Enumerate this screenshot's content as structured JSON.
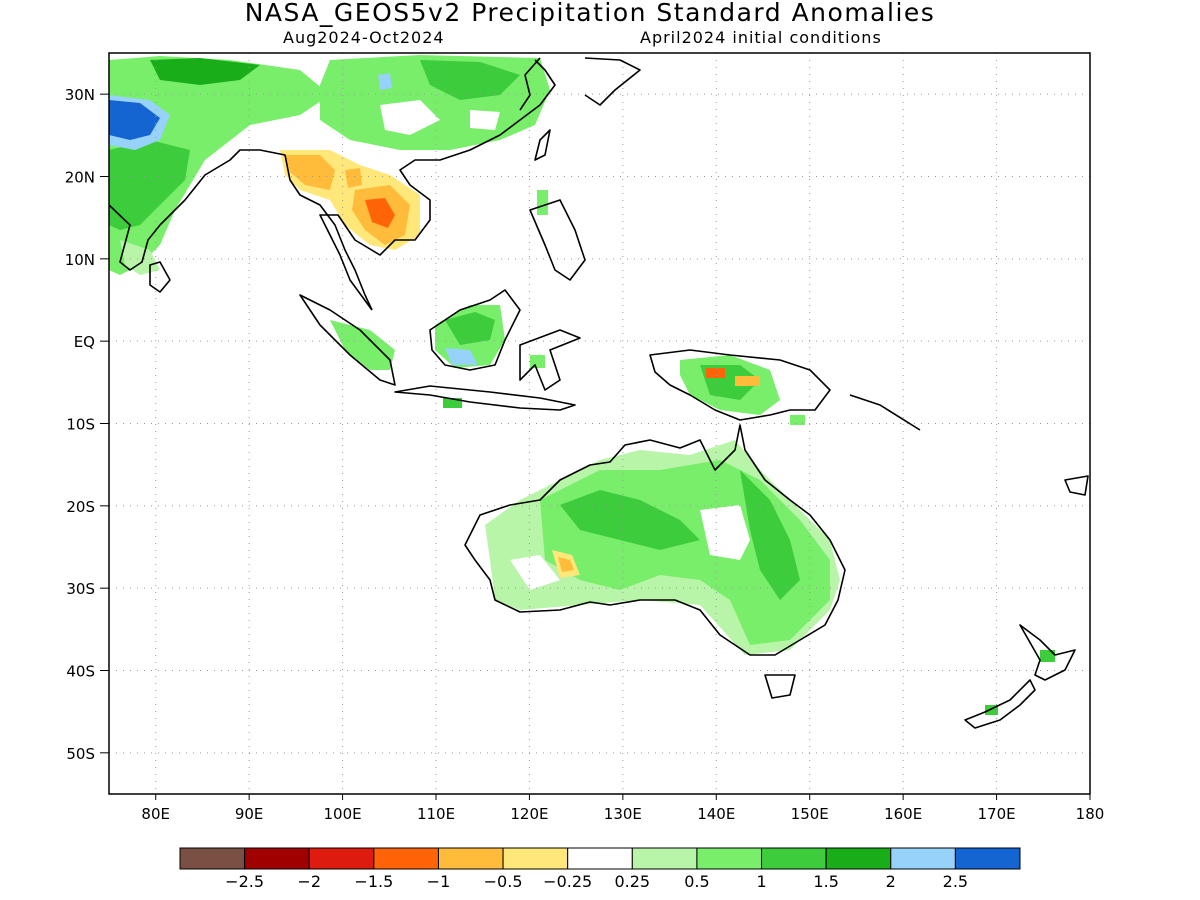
{
  "title": "NASA_GEOS5v2 Precipitation Standard Anomalies",
  "subtitle_left": "Aug2024-Oct2024",
  "subtitle_right": "April2024 initial conditions",
  "lat_labels": [
    "30N",
    "20N",
    "10N",
    "EQ",
    "10S",
    "20S",
    "30S",
    "40S",
    "50S"
  ],
  "lon_labels": [
    "80E",
    "90E",
    "100E",
    "110E",
    "120E",
    "130E",
    "140E",
    "150E",
    "160E",
    "170E",
    "180"
  ],
  "colorbar": {
    "colors": [
      "#7a5045",
      "#a00000",
      "#dd1b0e",
      "#ff6508",
      "#ffbb3a",
      "#ffe77a",
      "#ffffff",
      "#b8f5a8",
      "#78ee6a",
      "#3ccc3c",
      "#1aad1a",
      "#96d2fa",
      "#1464d2"
    ],
    "labels": [
      "-2.5",
      "-2",
      "-1.5",
      "-1",
      "-0.5",
      "-0.25",
      "0.25",
      "0.5",
      "1",
      "1.5",
      "2",
      "2.5"
    ]
  },
  "map": {
    "lon_range": [
      75,
      180
    ],
    "lat_range": [
      -55,
      35
    ],
    "grid": "dotted"
  }
}
